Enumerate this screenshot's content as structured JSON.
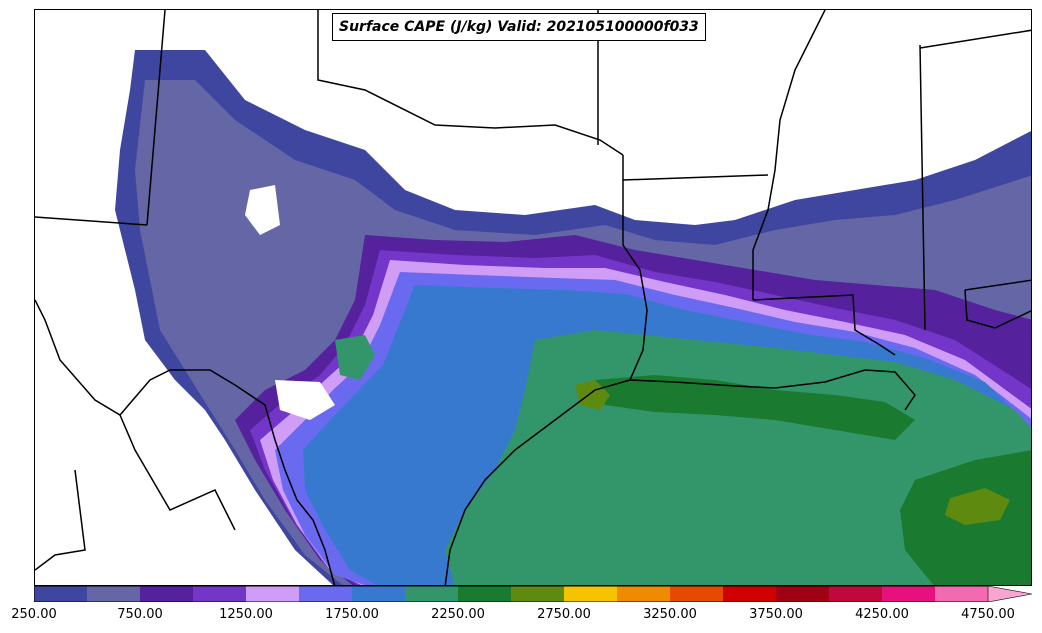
{
  "title": "Surface CAPE (J/kg) Valid: 202105100000f033",
  "colorbar": {
    "colors": [
      "#3f46a0",
      "#6566a6",
      "#55219d",
      "#7436c8",
      "#cf9cf6",
      "#6a6af0",
      "#3779cf",
      "#33966b",
      "#1a7a2f",
      "#5f8a10",
      "#f5c300",
      "#f08a00",
      "#e64a00",
      "#d00000",
      "#a00014",
      "#c0083c",
      "#e8107c",
      "#f46ab0"
    ],
    "ticks": [
      "250.00",
      "750.00",
      "1250.00",
      "1750.00",
      "2250.00",
      "2750.00",
      "3250.00",
      "3750.00",
      "4250.00",
      "4750.00"
    ],
    "extend": "max"
  },
  "palette": {
    "cape_500": "#3f46a0",
    "cape_750": "#6566a6",
    "cape_1000": "#55219d",
    "cape_1250": "#7436c8",
    "cape_1500": "#cf9cf6",
    "cape_1750": "#6a6af0",
    "cape_2000": "#3779cf",
    "cape_2250": "#33966b",
    "cape_2500": "#1a7a2f",
    "cape_2750": "#5f8a10",
    "borders": "#000000"
  }
}
